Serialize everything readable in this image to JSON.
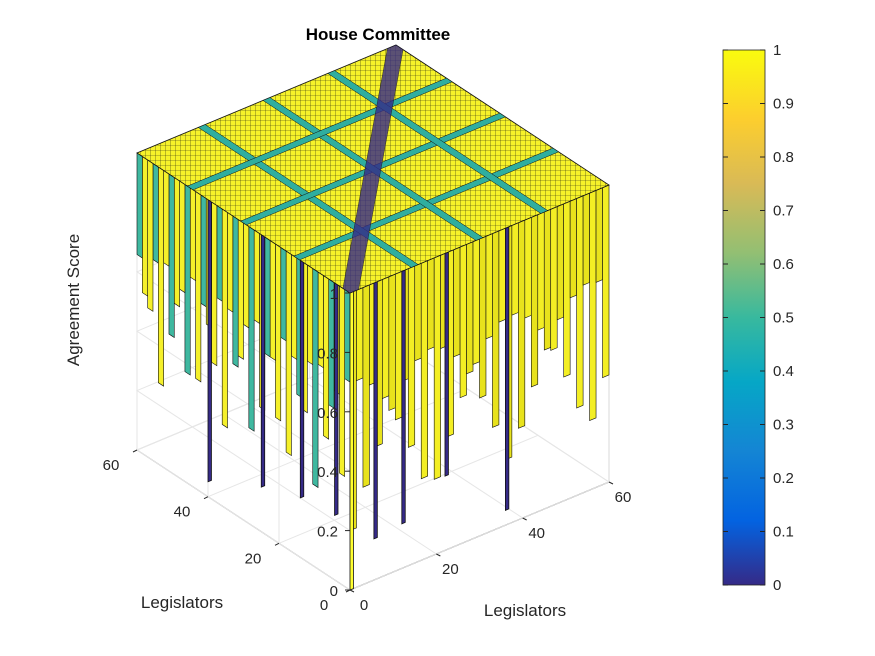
{
  "chart_data": {
    "type": "surface",
    "title": "House Committee",
    "xlabel": "Legislators",
    "ylabel": "Legislators",
    "zlabel": "Agreement Score",
    "xlim": [
      0,
      60
    ],
    "ylim": [
      0,
      60
    ],
    "zlim": [
      0,
      1
    ],
    "x_ticks": [
      0,
      20,
      40,
      60
    ],
    "y_ticks": [
      0,
      20,
      40,
      60
    ],
    "z_ticks": [
      0,
      0.2,
      0.4,
      0.6,
      0.8,
      1
    ],
    "grid": true,
    "colormap": "parula",
    "colorbar": {
      "range": [
        0,
        1
      ],
      "ticks": [
        0,
        0.1,
        0.2,
        0.3,
        0.4,
        0.5,
        0.6,
        0.7,
        0.8,
        0.9,
        1
      ],
      "tick_labels": [
        "0",
        "0.1",
        "0.2",
        "0.3",
        "0.4",
        "0.5",
        "0.6",
        "0.7",
        "0.8",
        "0.9",
        "1"
      ]
    },
    "blocks": [
      {
        "x_range": [
          0,
          15
        ],
        "y_range": [
          0,
          15
        ],
        "value": 1
      },
      {
        "x_range": [
          15,
          30
        ],
        "y_range": [
          15,
          30
        ],
        "value": 1
      },
      {
        "x_range": [
          30,
          45
        ],
        "y_range": [
          30,
          45
        ],
        "value": 1
      },
      {
        "x_range": [
          45,
          60
        ],
        "y_range": [
          45,
          60
        ],
        "value": 1
      }
    ],
    "off_block_value": 0.5,
    "min_value": 0
  },
  "colors": {
    "parula_low": "#352a87",
    "parula_mid": "#21b0c0",
    "parula_high": "#f9fb0e",
    "edge": "#000000",
    "grid": "#e6e6e6",
    "axis": "#262626"
  }
}
